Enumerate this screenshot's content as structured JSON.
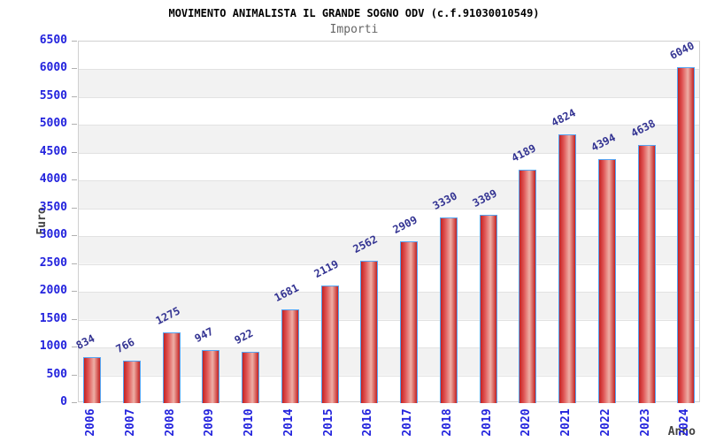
{
  "chart_data": {
    "type": "bar",
    "title": "MOVIMENTO ANIMALISTA IL GRANDE SOGNO ODV (c.f.91030010549)",
    "subtitle": "Importi",
    "xlabel": "Anno",
    "ylabel": "Euro",
    "categories": [
      "2006",
      "2007",
      "2008",
      "2009",
      "2010",
      "2014",
      "2015",
      "2016",
      "2017",
      "2018",
      "2019",
      "2020",
      "2021",
      "2022",
      "2023",
      "2024"
    ],
    "values": [
      834,
      766,
      1275,
      947,
      922,
      1681,
      2119,
      2562,
      2909,
      3330,
      3389,
      4189,
      4824,
      4394,
      4638,
      6040
    ],
    "ylim": [
      0,
      6500
    ],
    "ytick_step": 500,
    "yticks": [
      0,
      500,
      1000,
      1500,
      2000,
      2500,
      3000,
      3500,
      4000,
      4500,
      5000,
      5500,
      6000,
      6500
    ],
    "grid": "horizontal alternating bands every 500 units",
    "legend_position": "none"
  },
  "colors": {
    "bar_fill_dark": "#c42222",
    "bar_fill_mid": "#e05656",
    "bar_fill_light": "#eeafa6",
    "bar_border": "#55a4f2",
    "tick_label_blue": "#2323dd",
    "value_label_navy": "#333392",
    "axis_title_gray": "#444444",
    "title_black": "#000000",
    "subtitle_gray": "#666666",
    "band_gray": "#f2f2f2",
    "band_white": "#ffffff",
    "gridline": "#e2e2e2",
    "plot_border": "#d0d0d0",
    "tick_mark": "#b0b0b0"
  }
}
